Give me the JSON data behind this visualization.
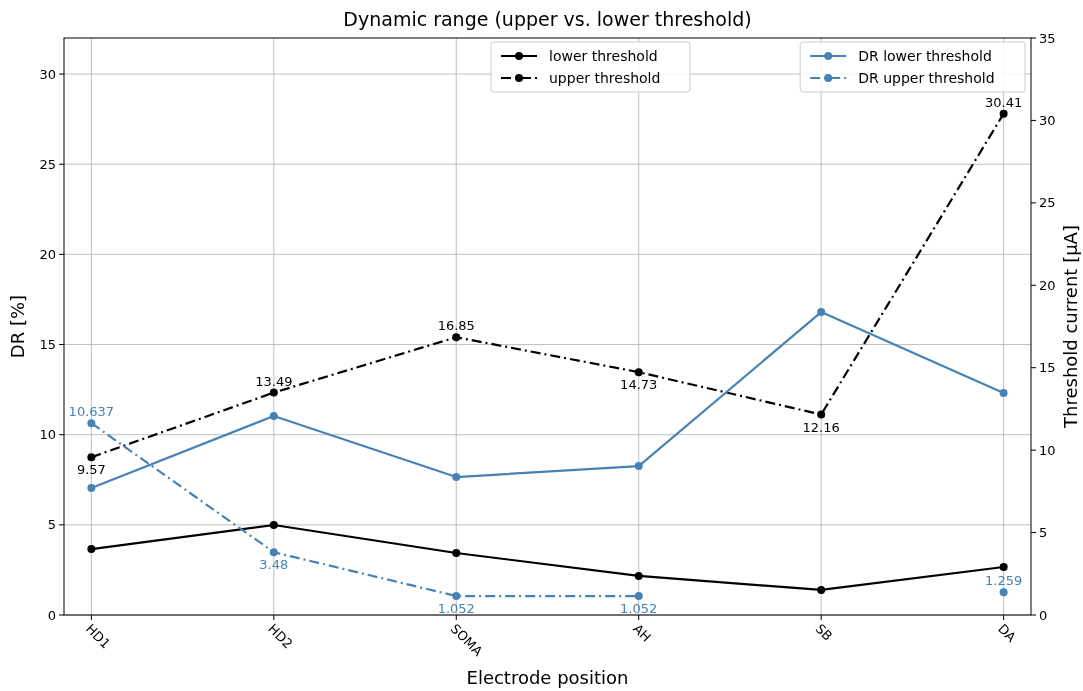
{
  "chart_data": {
    "type": "line",
    "title": "Dynamic range (upper vs. lower threshold)",
    "xlabel": "Electrode position",
    "ylabel": "DR [%]",
    "y2label": "Threshold current [µA]",
    "categories": [
      "HD1",
      "HD2",
      "SOMA",
      "AH",
      "SB",
      "DA"
    ],
    "ylim": [
      0,
      32
    ],
    "yticks": [
      0,
      5,
      10,
      15,
      20,
      25,
      30
    ],
    "y2lim": [
      0,
      35
    ],
    "y2ticks": [
      0,
      5,
      10,
      15,
      20,
      25,
      30,
      35
    ],
    "grid": true,
    "legend": "top right",
    "marker": "circle",
    "series": [
      {
        "name": "lower threshold",
        "color": "#000000",
        "axis": "y2",
        "line_style": "solid",
        "values": [
          4.0,
          5.46,
          3.76,
          2.37,
          1.52,
          2.91
        ]
      },
      {
        "name": "upper threshold",
        "color": "#000000",
        "axis": "y2",
        "line_style": "dashdot",
        "values": [
          9.57,
          13.49,
          16.85,
          14.73,
          12.16,
          30.41
        ],
        "value_labels": [
          "9.57",
          "13.49",
          "16.85",
          "14.73",
          "12.16",
          "30.41"
        ]
      },
      {
        "name": "DR lower threshold",
        "color": "#4682b4",
        "axis": "y",
        "line_style": "solid",
        "values": [
          7.04,
          11.04,
          7.65,
          8.26,
          16.8,
          12.31
        ]
      },
      {
        "name": "DR upper threshold",
        "color": "#4682b4",
        "axis": "y",
        "line_style": "dashdot",
        "values": [
          10.637,
          3.48,
          1.052,
          1.052,
          null,
          1.259
        ],
        "value_labels": [
          "10.637",
          "3.48",
          "1.052",
          "1.052",
          null,
          "1.259"
        ]
      }
    ]
  }
}
